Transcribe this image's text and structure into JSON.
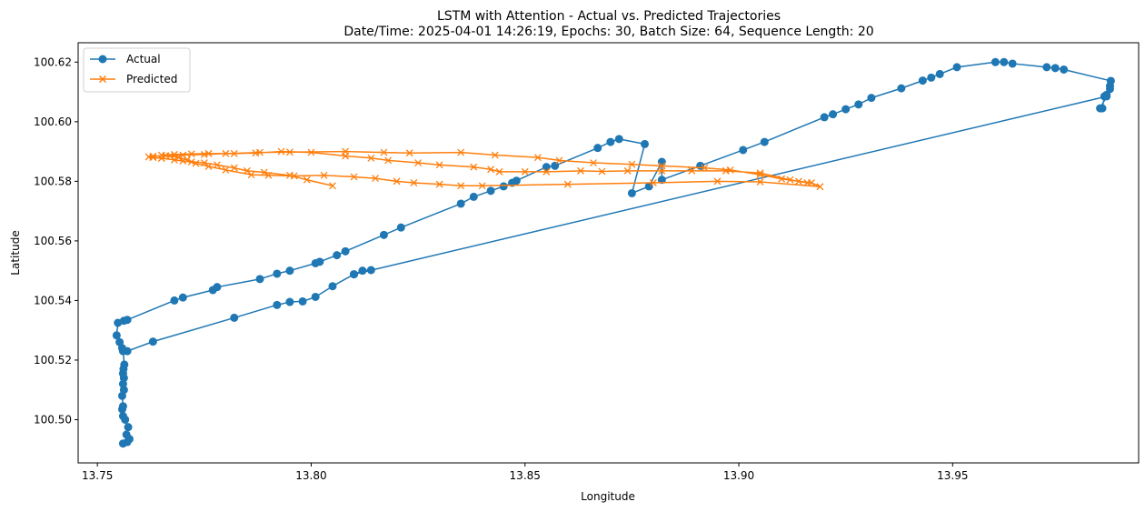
{
  "chart_data": {
    "type": "line",
    "title": "LSTM with Attention - Actual vs. Predicted Trajectories",
    "subtitle": "Date/Time: 2025-04-01 14:26:19, Epochs: 30, Batch Size: 64, Sequence Length: 20",
    "xlabel": "Longitude",
    "ylabel": "Latitude",
    "xlim": [
      13.7455,
      13.9935
    ],
    "ylim": [
      100.4855,
      100.6265
    ],
    "xticks": [
      13.75,
      13.8,
      13.85,
      13.9,
      13.95
    ],
    "xtick_labels": [
      "13.75",
      "13.80",
      "13.85",
      "13.90",
      "13.95"
    ],
    "yticks": [
      100.5,
      100.52,
      100.54,
      100.56,
      100.58,
      100.6,
      100.62
    ],
    "ytick_labels": [
      "100.50",
      "100.52",
      "100.54",
      "100.56",
      "100.58",
      "100.60",
      "100.62"
    ],
    "grid": false,
    "legend_position": "top-left",
    "series": [
      {
        "name": "Actual",
        "color": "#1f77b4",
        "marker": "circle",
        "points": [
          [
            13.756,
            100.492
          ],
          [
            13.757,
            100.4925
          ],
          [
            13.7575,
            100.4935
          ],
          [
            13.7568,
            100.495
          ],
          [
            13.7572,
            100.4975
          ],
          [
            13.7565,
            100.5
          ],
          [
            13.756,
            100.5012
          ],
          [
            13.7558,
            100.5035
          ],
          [
            13.756,
            100.5045
          ],
          [
            13.7558,
            100.508
          ],
          [
            13.7562,
            100.51
          ],
          [
            13.756,
            100.512
          ],
          [
            13.7562,
            100.514
          ],
          [
            13.756,
            100.5155
          ],
          [
            13.7561,
            100.517
          ],
          [
            13.7563,
            100.5185
          ],
          [
            13.756,
            100.523
          ],
          [
            13.7558,
            100.524
          ],
          [
            13.7552,
            100.526
          ],
          [
            13.7545,
            100.5283
          ],
          [
            13.7548,
            100.5325
          ],
          [
            13.7562,
            100.5332
          ],
          [
            13.757,
            100.5335
          ],
          [
            13.768,
            100.54
          ],
          [
            13.77,
            100.541
          ],
          [
            13.777,
            100.5435
          ],
          [
            13.778,
            100.5445
          ],
          [
            13.788,
            100.5472
          ],
          [
            13.792,
            100.549
          ],
          [
            13.795,
            100.55
          ],
          [
            13.801,
            100.5525
          ],
          [
            13.802,
            100.553
          ],
          [
            13.806,
            100.5552
          ],
          [
            13.808,
            100.5565
          ],
          [
            13.817,
            100.562
          ],
          [
            13.821,
            100.5645
          ],
          [
            13.835,
            100.5725
          ],
          [
            13.838,
            100.5748
          ],
          [
            13.842,
            100.5768
          ],
          [
            13.845,
            100.5783
          ],
          [
            13.847,
            100.5795
          ],
          [
            13.848,
            100.5802
          ],
          [
            13.855,
            100.5848
          ],
          [
            13.857,
            100.5852
          ],
          [
            13.867,
            100.5912
          ],
          [
            13.87,
            100.5932
          ],
          [
            13.872,
            100.5942
          ],
          [
            13.878,
            100.5925
          ],
          [
            13.875,
            100.576
          ],
          [
            13.879,
            100.5783
          ],
          [
            13.882,
            100.5865
          ],
          [
            13.882,
            100.5805
          ],
          [
            13.891,
            100.5852
          ],
          [
            13.901,
            100.5905
          ],
          [
            13.906,
            100.5932
          ],
          [
            13.92,
            100.6015
          ],
          [
            13.922,
            100.6025
          ],
          [
            13.925,
            100.6042
          ],
          [
            13.928,
            100.6058
          ],
          [
            13.931,
            100.608
          ],
          [
            13.938,
            100.6112
          ],
          [
            13.943,
            100.6138
          ],
          [
            13.945,
            100.6148
          ],
          [
            13.947,
            100.616
          ],
          [
            13.951,
            100.6183
          ],
          [
            13.96,
            100.62
          ],
          [
            13.962,
            100.62
          ],
          [
            13.964,
            100.6195
          ],
          [
            13.972,
            100.6183
          ],
          [
            13.974,
            100.618
          ],
          [
            13.976,
            100.6175
          ],
          [
            13.987,
            100.6137
          ],
          [
            13.9868,
            100.612
          ],
          [
            13.9868,
            100.611
          ],
          [
            13.986,
            100.609
          ],
          [
            13.9855,
            100.6085
          ],
          [
            13.985,
            100.6045
          ],
          [
            13.9845,
            100.6045
          ],
          [
            13.986,
            100.6085
          ],
          [
            13.81,
            100.5488
          ],
          [
            13.812,
            100.55
          ],
          [
            13.814,
            100.5502
          ],
          [
            13.81,
            100.5488
          ],
          [
            13.805,
            100.5448
          ],
          [
            13.801,
            100.5412
          ],
          [
            13.798,
            100.5397
          ],
          [
            13.795,
            100.5395
          ],
          [
            13.792,
            100.5385
          ],
          [
            13.782,
            100.5342
          ],
          [
            13.763,
            100.5262
          ],
          [
            13.757,
            100.523
          ]
        ]
      },
      {
        "name": "Predicted",
        "color": "#ff7f0e",
        "marker": "x",
        "points": [
          [
            13.805,
            100.5785
          ],
          [
            13.799,
            100.5805
          ],
          [
            13.795,
            100.582
          ],
          [
            13.789,
            100.583
          ],
          [
            13.785,
            100.5835
          ],
          [
            13.782,
            100.5845
          ],
          [
            13.778,
            100.5855
          ],
          [
            13.775,
            100.5862
          ],
          [
            13.772,
            100.5865
          ],
          [
            13.77,
            100.5868
          ],
          [
            13.768,
            100.5872
          ],
          [
            13.765,
            100.5877
          ],
          [
            13.763,
            100.588
          ],
          [
            13.762,
            100.5882
          ],
          [
            13.763,
            100.5884
          ],
          [
            13.766,
            100.5886
          ],
          [
            13.77,
            100.5888
          ],
          [
            13.775,
            100.589
          ],
          [
            13.78,
            100.5893
          ],
          [
            13.788,
            100.5897
          ],
          [
            13.795,
            100.5898
          ],
          [
            13.808,
            100.59
          ],
          [
            13.817,
            100.5897
          ],
          [
            13.823,
            100.5895
          ],
          [
            13.835,
            100.5897
          ],
          [
            13.843,
            100.5888
          ],
          [
            13.853,
            100.588
          ],
          [
            13.858,
            100.587
          ],
          [
            13.866,
            100.5862
          ],
          [
            13.875,
            100.5857
          ],
          [
            13.882,
            100.5852
          ],
          [
            13.892,
            100.5845
          ],
          [
            13.898,
            100.5838
          ],
          [
            13.905,
            100.5822
          ],
          [
            13.91,
            100.5808
          ],
          [
            13.914,
            100.58
          ],
          [
            13.917,
            100.5795
          ],
          [
            13.919,
            100.5782
          ],
          [
            13.905,
            100.5798
          ],
          [
            13.895,
            100.58
          ],
          [
            13.88,
            100.5795
          ],
          [
            13.86,
            100.579
          ],
          [
            13.84,
            100.5785
          ],
          [
            13.835,
            100.5785
          ],
          [
            13.83,
            100.579
          ],
          [
            13.824,
            100.5795
          ],
          [
            13.82,
            100.58
          ],
          [
            13.815,
            100.581
          ],
          [
            13.81,
            100.5815
          ],
          [
            13.803,
            100.582
          ],
          [
            13.796,
            100.5818
          ],
          [
            13.79,
            100.582
          ],
          [
            13.786,
            100.5822
          ],
          [
            13.78,
            100.5838
          ],
          [
            13.776,
            100.585
          ],
          [
            13.773,
            100.586
          ],
          [
            13.771,
            100.5872
          ],
          [
            13.769,
            100.588
          ],
          [
            13.767,
            100.5885
          ],
          [
            13.765,
            100.5888
          ],
          [
            13.768,
            100.589
          ],
          [
            13.772,
            100.5892
          ],
          [
            13.776,
            100.5893
          ],
          [
            13.782,
            100.5893
          ],
          [
            13.787,
            100.5895
          ],
          [
            13.793,
            100.59
          ],
          [
            13.8,
            100.5897
          ],
          [
            13.808,
            100.5885
          ],
          [
            13.814,
            100.5878
          ],
          [
            13.818,
            100.587
          ],
          [
            13.825,
            100.5862
          ],
          [
            13.83,
            100.5855
          ],
          [
            13.838,
            100.5848
          ],
          [
            13.842,
            100.584
          ],
          [
            13.844,
            100.5832
          ],
          [
            13.85,
            100.5832
          ],
          [
            13.855,
            100.5832
          ],
          [
            13.863,
            100.5835
          ],
          [
            13.868,
            100.5833
          ],
          [
            13.874,
            100.5835
          ],
          [
            13.882,
            100.5835
          ],
          [
            13.889,
            100.5835
          ],
          [
            13.897,
            100.5835
          ],
          [
            13.905,
            100.5828
          ],
          [
            13.912,
            100.5805
          ],
          [
            13.916,
            100.5795
          ]
        ]
      }
    ]
  }
}
